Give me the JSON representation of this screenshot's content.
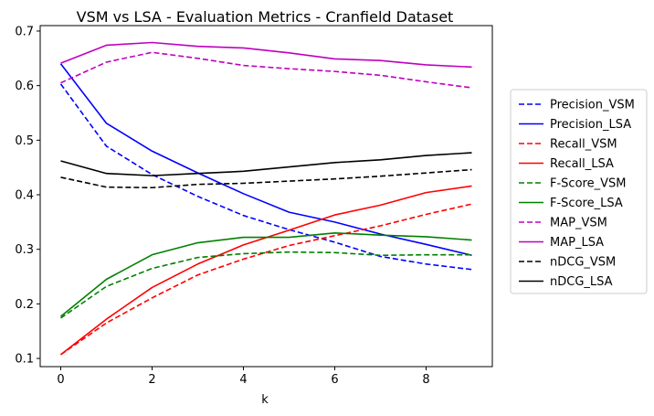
{
  "chart_data": {
    "type": "line",
    "title": "VSM vs LSA - Evaluation Metrics - Cranfield Dataset",
    "xlabel": "k",
    "ylabel": "",
    "x": [
      0,
      1,
      2,
      3,
      4,
      5,
      6,
      7,
      8,
      9
    ],
    "xlim": [
      -0.45,
      9.45
    ],
    "ylim": [
      0.085,
      0.71
    ],
    "xticks": [
      0,
      2,
      4,
      6,
      8
    ],
    "yticks": [
      0.1,
      0.2,
      0.3,
      0.4,
      0.5,
      0.6,
      0.7
    ],
    "ytick_labels": [
      "0.1",
      "0.2",
      "0.3",
      "0.4",
      "0.5",
      "0.6",
      "0.7"
    ],
    "grid": false,
    "legend_position": "outside-right",
    "series": [
      {
        "name": "Precision_VSM",
        "color": "#0000ff",
        "style": "dashed",
        "values": [
          0.603,
          0.489,
          0.437,
          0.397,
          0.362,
          0.336,
          0.313,
          0.287,
          0.273,
          0.263
        ]
      },
      {
        "name": "Precision_LSA",
        "color": "#0000ff",
        "style": "solid",
        "values": [
          0.64,
          0.531,
          0.48,
          0.44,
          0.402,
          0.368,
          0.35,
          0.328,
          0.309,
          0.289
        ]
      },
      {
        "name": "Recall_VSM",
        "color": "#ff0000",
        "style": "dashed",
        "values": [
          0.107,
          0.165,
          0.211,
          0.253,
          0.282,
          0.307,
          0.325,
          0.343,
          0.364,
          0.383
        ]
      },
      {
        "name": "Recall_LSA",
        "color": "#ff0000",
        "style": "solid",
        "values": [
          0.107,
          0.172,
          0.23,
          0.273,
          0.308,
          0.335,
          0.363,
          0.381,
          0.404,
          0.416
        ]
      },
      {
        "name": "F-Score_VSM",
        "color": "#008000",
        "style": "dashed",
        "values": [
          0.174,
          0.232,
          0.265,
          0.285,
          0.292,
          0.295,
          0.294,
          0.289,
          0.29,
          0.29
        ]
      },
      {
        "name": "F-Score_LSA",
        "color": "#008000",
        "style": "solid",
        "values": [
          0.177,
          0.245,
          0.29,
          0.312,
          0.322,
          0.322,
          0.33,
          0.326,
          0.323,
          0.317
        ]
      },
      {
        "name": "MAP_VSM",
        "color": "#bf00bf",
        "style": "dashed",
        "values": [
          0.605,
          0.643,
          0.661,
          0.65,
          0.637,
          0.631,
          0.626,
          0.619,
          0.607,
          0.596
        ]
      },
      {
        "name": "MAP_LSA",
        "color": "#bf00bf",
        "style": "solid",
        "values": [
          0.641,
          0.674,
          0.679,
          0.672,
          0.669,
          0.66,
          0.649,
          0.646,
          0.638,
          0.634
        ]
      },
      {
        "name": "nDCG_VSM",
        "color": "#000000",
        "style": "dashed",
        "values": [
          0.432,
          0.414,
          0.413,
          0.419,
          0.421,
          0.425,
          0.429,
          0.434,
          0.44,
          0.446
        ]
      },
      {
        "name": "nDCG_LSA",
        "color": "#000000",
        "style": "solid",
        "values": [
          0.462,
          0.439,
          0.435,
          0.439,
          0.443,
          0.451,
          0.459,
          0.464,
          0.472,
          0.477
        ]
      }
    ]
  }
}
